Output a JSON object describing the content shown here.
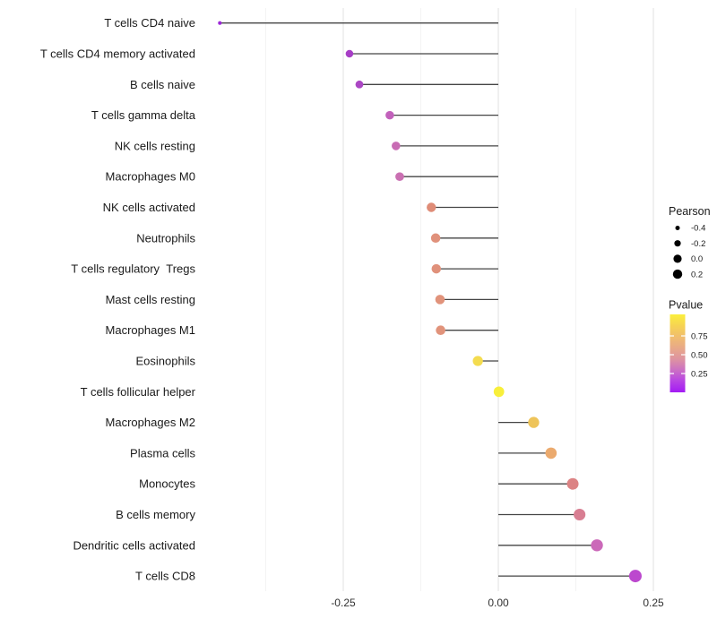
{
  "chart_data": {
    "type": "scatter",
    "subtype": "lollipop",
    "title": "",
    "xlabel": "",
    "ylabel": "",
    "xlim": [
      -0.483,
      0.255
    ],
    "grid": "vertical-only",
    "x_major_ticks": [
      {
        "label": "-0.25",
        "value": -0.25
      },
      {
        "label": "0.00",
        "value": 0.0
      },
      {
        "label": "0.25",
        "value": 0.25
      }
    ],
    "x_minor_ticks": [
      -0.375,
      -0.125,
      0.125
    ],
    "rows": [
      {
        "label": "T cells CD4 naive",
        "pearson": -0.449,
        "pvalue": 0.06,
        "color": "#9C27D8"
      },
      {
        "label": "T cells CD4 memory activated",
        "pearson": -0.24,
        "pvalue": 0.11,
        "color": "#A73EC6"
      },
      {
        "label": "B cells naive",
        "pearson": -0.224,
        "pvalue": 0.13,
        "color": "#AB47C4"
      },
      {
        "label": "T cells gamma delta",
        "pearson": -0.175,
        "pvalue": 0.2,
        "color": "#C261BB"
      },
      {
        "label": "NK cells resting",
        "pearson": -0.165,
        "pvalue": 0.23,
        "color": "#C86CB4"
      },
      {
        "label": "Macrophages M0",
        "pearson": -0.159,
        "pvalue": 0.24,
        "color": "#CA70B2"
      },
      {
        "label": "NK cells activated",
        "pearson": -0.108,
        "pvalue": 0.52,
        "color": "#DF8C77"
      },
      {
        "label": "Neutrophils",
        "pearson": -0.101,
        "pvalue": 0.54,
        "color": "#E0917B"
      },
      {
        "label": "T cells regulatory  Tregs",
        "pearson": -0.1,
        "pvalue": 0.54,
        "color": "#E0917B"
      },
      {
        "label": "Mast cells resting",
        "pearson": -0.094,
        "pvalue": 0.55,
        "color": "#E1937B"
      },
      {
        "label": "Macrophages M1",
        "pearson": -0.093,
        "pvalue": 0.55,
        "color": "#E1937B"
      },
      {
        "label": "Eosinophils",
        "pearson": -0.033,
        "pvalue": 0.88,
        "color": "#F4DC4F"
      },
      {
        "label": "T cells follicular helper",
        "pearson": 0.001,
        "pvalue": 0.97,
        "color": "#F8EF3B"
      },
      {
        "label": "Macrophages M2",
        "pearson": 0.057,
        "pvalue": 0.8,
        "color": "#EEC45A"
      },
      {
        "label": "Plasma cells",
        "pearson": 0.085,
        "pvalue": 0.68,
        "color": "#EBAA6E"
      },
      {
        "label": "Monocytes",
        "pearson": 0.12,
        "pvalue": 0.5,
        "color": "#DC8384"
      },
      {
        "label": "B cells memory",
        "pearson": 0.131,
        "pvalue": 0.46,
        "color": "#D87E92"
      },
      {
        "label": "Dendritic cells activated",
        "pearson": 0.159,
        "pvalue": 0.28,
        "color": "#CB69B9"
      },
      {
        "label": "T cells CD8",
        "pearson": 0.221,
        "pvalue": 0.14,
        "color": "#BC48CE"
      }
    ],
    "legend": {
      "position": "right",
      "pearson": {
        "title": "Pearson",
        "items": [
          {
            "label": "-0.4",
            "r": 2.5
          },
          {
            "label": "-0.2",
            "r": 3.6
          },
          {
            "label": "0.0",
            "r": 4.6
          },
          {
            "label": "0.2",
            "r": 5.2
          }
        ]
      },
      "pvalue": {
        "title": "Pvalue",
        "ticks": [
          {
            "label": "0.75",
            "value": 0.75
          },
          {
            "label": "0.50",
            "value": 0.5
          },
          {
            "label": "0.25",
            "value": 0.25
          }
        ],
        "gradient": [
          {
            "offset": 0.0,
            "color": "#FBEF3C"
          },
          {
            "offset": 0.15,
            "color": "#F6D254"
          },
          {
            "offset": 0.3,
            "color": "#F0BC71"
          },
          {
            "offset": 0.45,
            "color": "#E7A68C"
          },
          {
            "offset": 0.58,
            "color": "#DD92A2"
          },
          {
            "offset": 0.7,
            "color": "#CD74C0"
          },
          {
            "offset": 0.85,
            "color": "#B845E3"
          },
          {
            "offset": 1.0,
            "color": "#A31BF4"
          }
        ]
      }
    },
    "colors": {
      "stick": "#454545",
      "grid_major": "#e4e4e4",
      "grid_minor": "#f2f2f2",
      "axis_text": "#303030",
      "label_text": "#1a1a1a",
      "legend_dot": "#000000"
    }
  }
}
